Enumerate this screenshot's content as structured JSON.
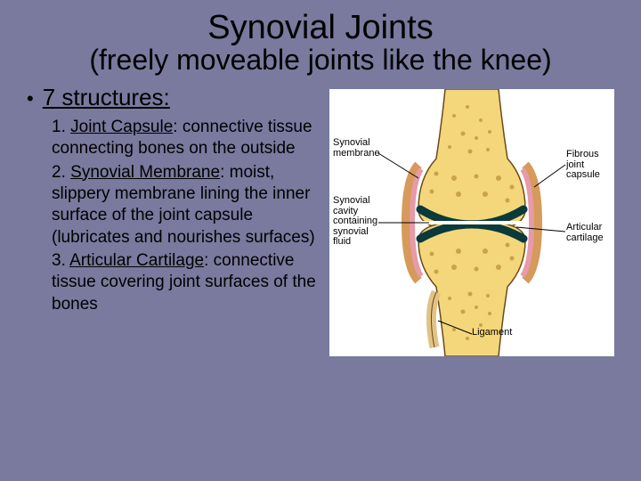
{
  "slide": {
    "background_color": "#797a9e",
    "title_line1": "Synovial Joints",
    "title_line2": "(freely moveable joints like the knee)",
    "bullet_heading": "7 structures:",
    "items": [
      {
        "num": "1.",
        "term": "Joint Capsule",
        "desc": ": connective tissue connecting bones on the outside"
      },
      {
        "num": "2.",
        "term": "Synovial Membrane",
        "desc": ": moist, slippery membrane lining the inner surface of the joint capsule (lubricates and nourishes surfaces)"
      },
      {
        "num": "3.",
        "term": "Articular Cartilage",
        "desc": ": connective tissue covering joint surfaces of the bones"
      }
    ]
  },
  "diagram": {
    "background_color": "#ffffff",
    "bone_color": "#f4d77a",
    "bone_texture_color": "#c9a24a",
    "capsule_color": "#d69a5a",
    "membrane_color": "#e79aa8",
    "cartilage_color": "#0a3a3a",
    "cavity_color": "#ffffff",
    "ligament_color": "#e2c285",
    "outline_color": "#000000",
    "labels": {
      "synovial_membrane": "Synovial\nmembrane",
      "synovial_cavity": "Synovial\ncavity\ncontaining\nsynovial\nfluid",
      "fibrous_capsule": "Fibrous\njoint\ncapsule",
      "articular_cartilage": "Articular\ncartilage",
      "ligament": "Ligament"
    }
  }
}
